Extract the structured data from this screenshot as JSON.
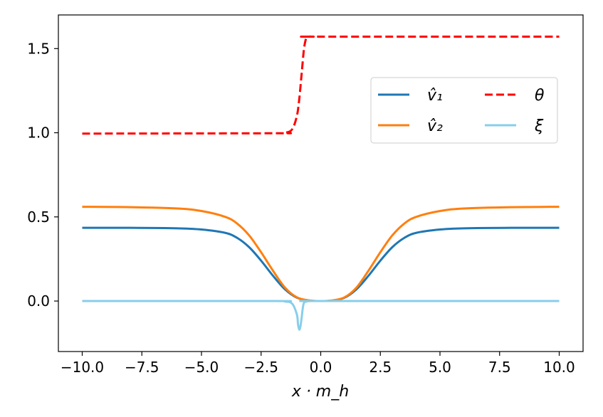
{
  "chart_data": {
    "type": "line",
    "xlabel": "x · m_h",
    "ylabel": "",
    "xlim": [
      -11.0,
      11.0
    ],
    "ylim": [
      -0.3,
      1.7
    ],
    "xticks": [
      -10.0,
      -7.5,
      -5.0,
      -2.5,
      0.0,
      2.5,
      5.0,
      7.5,
      10.0
    ],
    "xtick_labels": [
      "−10.0",
      "−7.5",
      "−5.0",
      "−2.5",
      "0.0",
      "2.5",
      "5.0",
      "7.5",
      "10.0"
    ],
    "yticks": [
      0.0,
      0.5,
      1.0,
      1.5
    ],
    "ytick_labels": [
      "0.0",
      "0.5",
      "1.0",
      "1.5"
    ],
    "grid": false,
    "legend_position": "upper-right",
    "legend_columns": 2,
    "series": [
      {
        "name": "v̂₁",
        "color": "#1f77b4",
        "style": "solid",
        "x": [
          -10,
          -8,
          -6,
          -5,
          -4,
          -3.5,
          -3,
          -2.5,
          -2,
          -1.5,
          -1,
          -0.5,
          0,
          0.5,
          1,
          1.5,
          2,
          2.5,
          3,
          3.5,
          4,
          5,
          6,
          8,
          10
        ],
        "y": [
          0.435,
          0.435,
          0.432,
          0.425,
          0.405,
          0.375,
          0.32,
          0.24,
          0.15,
          0.07,
          0.02,
          0.003,
          0.0,
          0.003,
          0.02,
          0.07,
          0.15,
          0.24,
          0.32,
          0.375,
          0.405,
          0.425,
          0.432,
          0.435,
          0.435
        ]
      },
      {
        "name": "v̂₂",
        "color": "#ff7f0e",
        "style": "solid",
        "x": [
          -10,
          -8,
          -6,
          -5,
          -4,
          -3.5,
          -3,
          -2.5,
          -2,
          -1.5,
          -1,
          -0.5,
          0,
          0.5,
          1,
          1.5,
          2,
          2.5,
          3,
          3.5,
          4,
          5,
          6,
          8,
          10
        ],
        "y": [
          0.56,
          0.558,
          0.55,
          0.535,
          0.5,
          0.46,
          0.39,
          0.29,
          0.18,
          0.08,
          0.022,
          0.004,
          0.0,
          0.004,
          0.022,
          0.08,
          0.18,
          0.29,
          0.39,
          0.46,
          0.5,
          0.535,
          0.55,
          0.558,
          0.56
        ]
      },
      {
        "name": "θ",
        "color": "#ff0000",
        "style": "dashed",
        "x": [
          -10,
          -2,
          -1.5,
          -1.2,
          -1.0,
          -0.9,
          -0.8,
          -0.7,
          -0.6,
          -0.5,
          -0.3,
          0,
          10
        ],
        "y": [
          0.995,
          0.997,
          1.0,
          1.02,
          1.1,
          1.2,
          1.35,
          1.5,
          1.565,
          1.571,
          1.571,
          1.571,
          1.571
        ]
      },
      {
        "name": "ξ",
        "color": "#87ceeb",
        "style": "solid",
        "x": [
          -10,
          -2,
          -1.5,
          -1.2,
          -1.0,
          -0.95,
          -0.9,
          -0.85,
          -0.8,
          -0.75,
          -0.7,
          -0.6,
          -0.4,
          0,
          10
        ],
        "y": [
          0.0,
          0.0,
          -0.003,
          -0.015,
          -0.08,
          -0.14,
          -0.17,
          -0.15,
          -0.1,
          -0.04,
          -0.01,
          -0.003,
          0.0,
          0.0,
          0.0
        ]
      }
    ]
  }
}
